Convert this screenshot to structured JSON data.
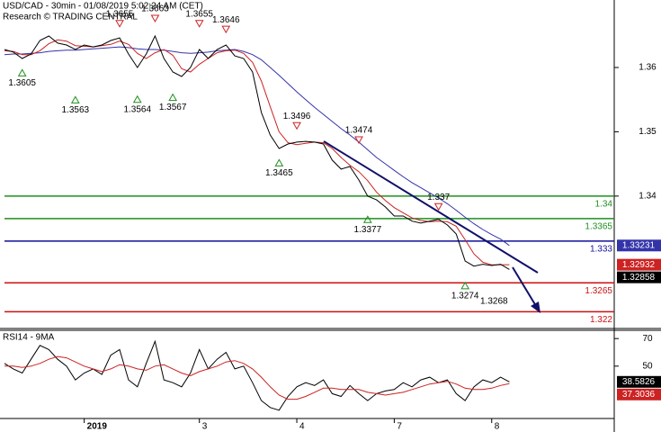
{
  "chart_data": [
    {
      "type": "line",
      "title": "USD/CAD - 30min - 01/08/2019 5:02:24 AM (CET)",
      "subtitle": "Research © TRADING CENTRAL",
      "categories": [
        null,
        null,
        null,
        null,
        null,
        null,
        null,
        null,
        null,
        "2019",
        null,
        null,
        null,
        null,
        null,
        null,
        null,
        null,
        null,
        null,
        null,
        null,
        "3",
        null,
        null,
        null,
        null,
        null,
        null,
        null,
        null,
        null,
        null,
        "4",
        null,
        null,
        null,
        null,
        null,
        null,
        null,
        null,
        null,
        null,
        "7",
        null,
        null,
        null,
        null,
        null,
        null,
        null,
        null,
        null,
        null,
        "8",
        null,
        null
      ],
      "ylim": [
        1.3194,
        1.3705
      ],
      "yticks": [
        1.36,
        1.35,
        1.34
      ],
      "series": [
        {
          "color": "#3333aa",
          "values": [
            1.362,
            1.3621,
            1.3621,
            1.3622,
            1.3623,
            1.3625,
            1.3626,
            1.3627,
            1.3627,
            1.3628,
            1.3629,
            1.363,
            1.3631,
            1.3632,
            1.3631,
            1.3629,
            1.3628,
            1.3628,
            1.3627,
            1.3625,
            1.3623,
            1.3622,
            1.3623,
            1.3624,
            1.3626,
            1.3627,
            1.3628,
            1.3625,
            1.362,
            1.3612,
            1.36,
            1.3588,
            1.3575,
            1.3562,
            1.355,
            1.3538,
            1.3527,
            1.3516,
            1.3505,
            1.3495,
            1.3484,
            1.3472,
            1.346,
            1.345,
            1.344,
            1.343,
            1.3421,
            1.3413,
            1.3405,
            1.3397,
            1.3388,
            1.3378,
            1.3367,
            1.3357,
            1.3348,
            1.334,
            1.3333,
            1.33231
          ]
        },
        {
          "color": "#cc2222",
          "values": [
            1.3626,
            1.3625,
            1.362,
            1.362,
            1.3626,
            1.3637,
            1.3643,
            1.3641,
            1.3634,
            1.3633,
            1.3632,
            1.3634,
            1.3636,
            1.3641,
            1.3636,
            1.3622,
            1.3614,
            1.3623,
            1.3628,
            1.3619,
            1.3598,
            1.3593,
            1.3605,
            1.3614,
            1.3623,
            1.3626,
            1.3627,
            1.3622,
            1.3608,
            1.3579,
            1.3539,
            1.35,
            1.3483,
            1.348,
            1.3482,
            1.3484,
            1.3483,
            1.3474,
            1.346,
            1.3448,
            1.3438,
            1.3424,
            1.3406,
            1.3393,
            1.3382,
            1.3374,
            1.3366,
            1.3362,
            1.336,
            1.3361,
            1.336,
            1.3353,
            1.3332,
            1.331,
            1.3297,
            1.3293,
            1.3293,
            1.32932
          ]
        },
        {
          "color": "#000000",
          "values": [
            1.3628,
            1.3624,
            1.3614,
            1.3621,
            1.3642,
            1.3649,
            1.3638,
            1.3635,
            1.3628,
            1.3635,
            1.3632,
            1.3635,
            1.3642,
            1.3646,
            1.3621,
            1.36,
            1.3621,
            1.3649,
            1.3614,
            1.3593,
            1.3586,
            1.36,
            1.3628,
            1.3614,
            1.3628,
            1.3635,
            1.3618,
            1.3614,
            1.3593,
            1.353,
            1.3495,
            1.3474,
            1.3481,
            1.3484,
            1.3485,
            1.3484,
            1.3481,
            1.3456,
            1.3442,
            1.3446,
            1.3425,
            1.34,
            1.3394,
            1.3383,
            1.3369,
            1.3369,
            1.3361,
            1.3358,
            1.3361,
            1.3364,
            1.3355,
            1.3341,
            1.3299,
            1.3291,
            1.3294,
            1.3292,
            1.3294,
            1.32858
          ]
        }
      ],
      "levels": [
        {
          "value": 1.34,
          "color": "#1f8f1f"
        },
        {
          "value": 1.3365,
          "color": "#1f8f1f"
        },
        {
          "value": 1.333,
          "color": "#10109a"
        },
        {
          "value": 1.3265,
          "color": "#cc1111"
        },
        {
          "value": 1.322,
          "color": "#cc1111"
        }
      ],
      "highs": [
        {
          "value": 1.3655,
          "index": 13
        },
        {
          "value": 1.3663,
          "index": 17
        },
        {
          "value": 1.3655,
          "index": 22
        },
        {
          "value": 1.3646,
          "index": 25
        },
        {
          "value": 1.3496,
          "index": 33
        },
        {
          "value": 1.3474,
          "index": 40
        },
        {
          "value": 1.337,
          "index": 49
        }
      ],
      "lows": [
        {
          "value": 1.3605,
          "index": 2
        },
        {
          "value": 1.3563,
          "index": 8
        },
        {
          "value": 1.3564,
          "index": 15
        },
        {
          "value": 1.3567,
          "index": 19
        },
        {
          "value": 1.3465,
          "index": 31
        },
        {
          "value": 1.3377,
          "index": 41
        },
        {
          "value": 1.3274,
          "index": 52
        }
      ],
      "target": 1.3268
    },
    {
      "type": "line",
      "title": "RSI14 - 9MA",
      "ylim": [
        12,
        76
      ],
      "yticks": [
        70,
        50
      ],
      "series": [
        {
          "color": "#000000",
          "values": [
            52,
            48,
            45,
            55,
            65,
            62,
            55,
            50,
            40,
            45,
            48,
            44,
            58,
            62,
            40,
            35,
            52,
            68,
            40,
            38,
            35,
            45,
            62,
            48,
            55,
            60,
            48,
            50,
            38,
            25,
            20,
            18,
            28,
            35,
            38,
            36,
            40,
            30,
            28,
            36,
            30,
            25,
            30,
            32,
            33,
            38,
            35,
            40,
            42,
            38,
            40,
            30,
            25,
            35,
            40,
            38,
            42,
            38.5826
          ]
        },
        {
          "color": "#cc2222",
          "values": [
            50,
            50,
            49,
            50,
            52,
            55,
            57,
            56,
            53,
            50,
            48,
            46,
            48,
            51,
            50,
            48,
            47,
            50,
            51,
            48,
            45,
            43,
            46,
            48,
            50,
            53,
            54,
            52,
            48,
            42,
            35,
            29,
            26,
            26,
            28,
            31,
            34,
            34,
            33,
            33,
            33,
            31,
            30,
            29,
            30,
            31,
            33,
            35,
            37,
            38,
            39,
            37,
            34,
            33,
            33,
            34,
            36,
            37.3036
          ]
        }
      ]
    }
  ]
}
